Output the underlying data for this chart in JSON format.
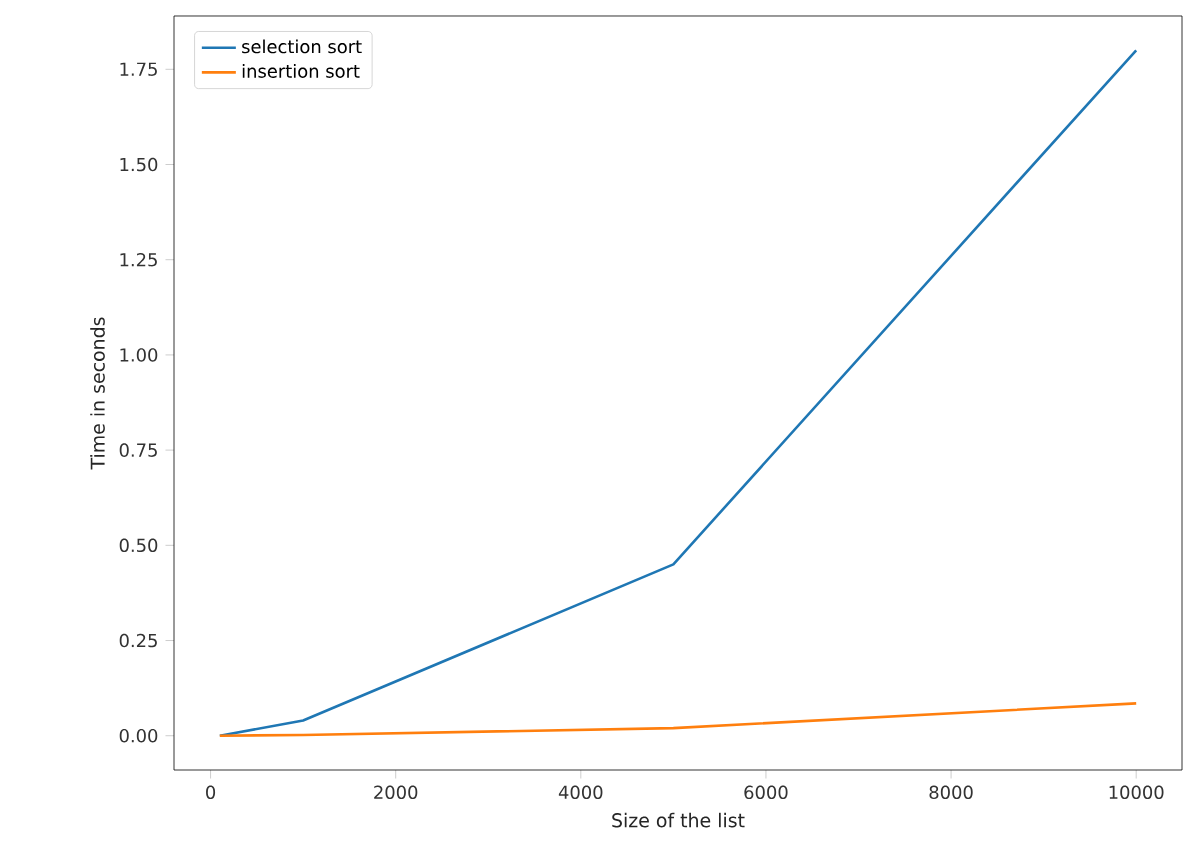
{
  "chart_data": {
    "type": "line",
    "xlabel": "Size of the list",
    "ylabel": "Time in seconds",
    "x": [
      100,
      1000,
      5000,
      10000
    ],
    "series": [
      {
        "name": "selection sort",
        "color": "#1f77b4",
        "values": [
          0.0,
          0.04,
          0.45,
          1.8
        ]
      },
      {
        "name": "insertion sort",
        "color": "#ff7f0e",
        "values": [
          0.0,
          0.002,
          0.02,
          0.085
        ]
      }
    ],
    "xlim": [
      -395,
      10495
    ],
    "ylim": [
      -0.09,
      1.89
    ],
    "xticks": [
      0,
      2000,
      4000,
      6000,
      8000,
      10000
    ],
    "yticks": [
      {
        "value": 0,
        "label": "0.00"
      },
      {
        "value": 0.25,
        "label": "0.25"
      },
      {
        "value": 0.5,
        "label": "0.50"
      },
      {
        "value": 0.75,
        "label": "0.75"
      },
      {
        "value": 1,
        "label": "1.00"
      },
      {
        "value": 1.25,
        "label": "1.25"
      },
      {
        "value": 1.5,
        "label": "1.50"
      },
      {
        "value": 1.75,
        "label": "1.75"
      }
    ],
    "legend": "top left",
    "grid": false,
    "line_style": "solid",
    "marker": "none"
  }
}
